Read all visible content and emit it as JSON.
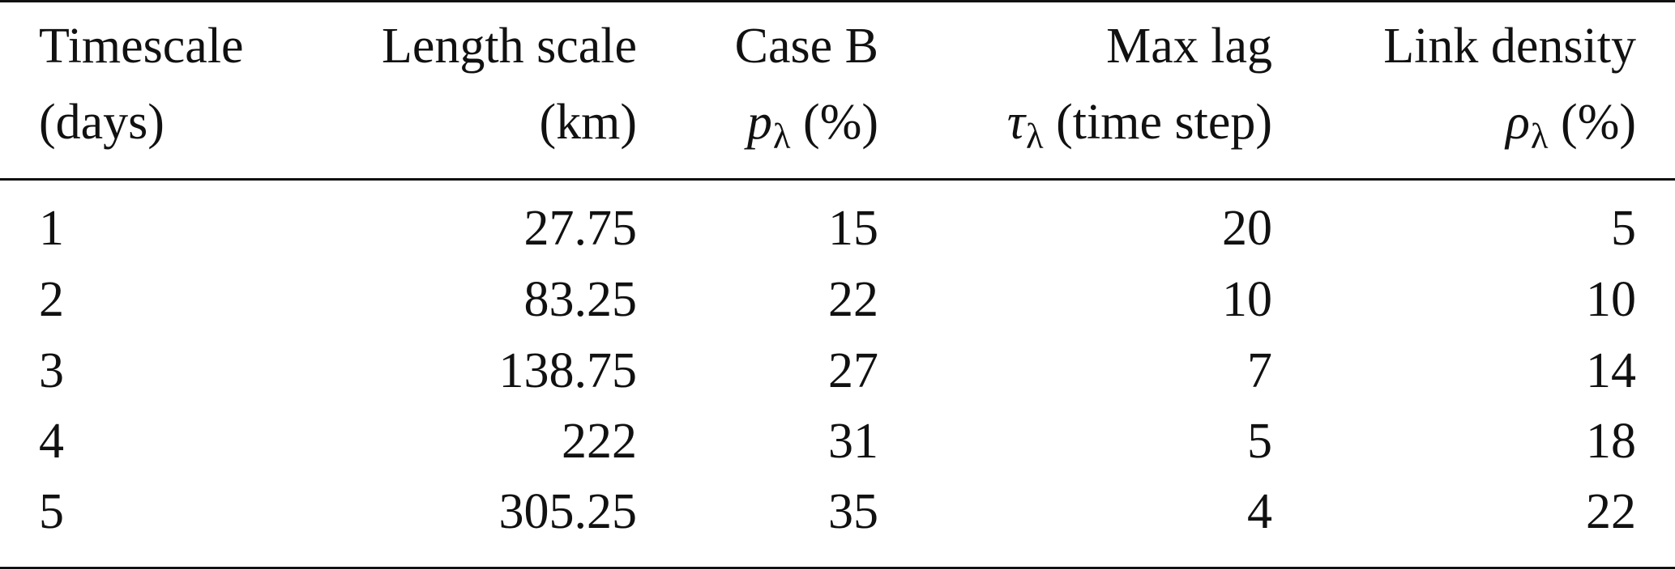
{
  "table": {
    "headers": [
      {
        "line1": "Timescale",
        "line2": "(days)"
      },
      {
        "line1": "Length scale",
        "line2": "(km)"
      },
      {
        "line1": "Case B",
        "line2_symbol": "p",
        "line2_sub": "λ",
        "line2_rest": "(%)"
      },
      {
        "line1": "Max lag",
        "line2_symbol": "τ",
        "line2_sub": "λ",
        "line2_rest": "(time step)"
      },
      {
        "line1": "Link density",
        "line2_symbol": "ρ",
        "line2_sub": "λ",
        "line2_rest": "(%)"
      }
    ],
    "rows": [
      [
        "1",
        "27.75",
        "15",
        "20",
        "5"
      ],
      [
        "2",
        "83.25",
        "22",
        "10",
        "10"
      ],
      [
        "3",
        "138.75",
        "27",
        "7",
        "14"
      ],
      [
        "4",
        "222",
        "31",
        "5",
        "18"
      ],
      [
        "5",
        "305.25",
        "35",
        "4",
        "22"
      ]
    ]
  }
}
